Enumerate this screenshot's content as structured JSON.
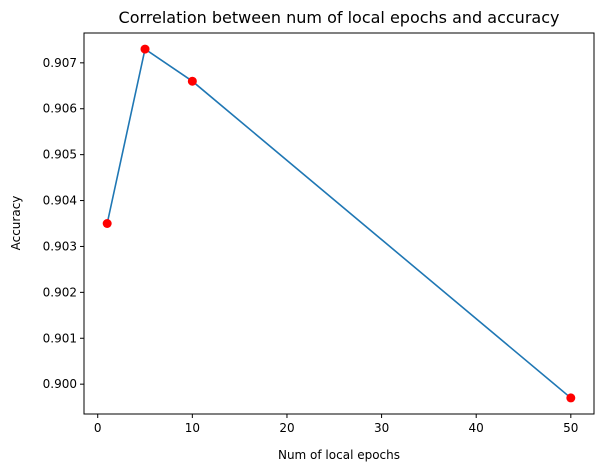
{
  "chart_data": {
    "type": "line",
    "title": "Correlation between num of local epochs and accuracy",
    "xlabel": "Num of local epochs",
    "ylabel": "Accuracy",
    "x": [
      1,
      5,
      10,
      50
    ],
    "series": [
      {
        "values": [
          0.9035,
          0.9073,
          0.9066,
          0.8997
        ]
      }
    ],
    "xlim": [
      -1.45,
      52.45
    ],
    "ylim": [
      0.89935,
      0.90765
    ],
    "xticks": [
      0,
      10,
      20,
      30,
      40,
      50
    ],
    "yticks": [
      "0.900",
      "0.901",
      "0.902",
      "0.903",
      "0.904",
      "0.905",
      "0.906",
      "0.907"
    ],
    "grid": false,
    "line_color": "#1f77b4",
    "marker_color": "#ff0000"
  }
}
